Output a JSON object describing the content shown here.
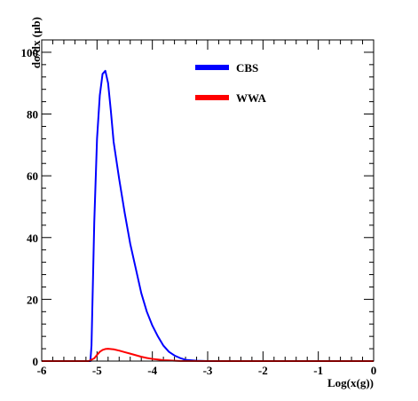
{
  "chart_data": {
    "type": "line",
    "title": "",
    "xlabel": "Log(x(g))",
    "ylabel": "dσ/dx (μb)",
    "xlim": [
      -6,
      0
    ],
    "ylim": [
      0,
      104
    ],
    "x_ticks": [
      -6,
      -5,
      -4,
      -3,
      -2,
      -1,
      0
    ],
    "x_tick_labels": [
      "-6",
      "-5",
      "-4",
      "-3",
      "-2",
      "-1",
      "0"
    ],
    "y_ticks": [
      0,
      20,
      40,
      60,
      80,
      100
    ],
    "y_tick_labels": [
      "0",
      "20",
      "40",
      "60",
      "80",
      "100"
    ],
    "grid": false,
    "legend_position": "top-center",
    "series": [
      {
        "name": "CBS",
        "color": "#0000ff",
        "x": [
          -6.0,
          -5.12,
          -5.1,
          -5.05,
          -5.0,
          -4.95,
          -4.9,
          -4.85,
          -4.8,
          -4.75,
          -4.7,
          -4.6,
          -4.5,
          -4.4,
          -4.3,
          -4.2,
          -4.1,
          -4.0,
          -3.9,
          -3.8,
          -3.7,
          -3.6,
          -3.5,
          -3.4,
          -3.2,
          -3.0,
          0.0
        ],
        "y": [
          0,
          0,
          5,
          45,
          72,
          86,
          93,
          94,
          90,
          81,
          71,
          59,
          48,
          38,
          30,
          22,
          16,
          11.5,
          8,
          5,
          3,
          1.8,
          1,
          0.4,
          0.1,
          0,
          0
        ]
      },
      {
        "name": "WWA",
        "color": "#ff0000",
        "x": [
          -6.0,
          -5.15,
          -5.05,
          -5.0,
          -4.95,
          -4.9,
          -4.85,
          -4.8,
          -4.7,
          -4.6,
          -4.5,
          -4.4,
          -4.3,
          -4.2,
          -4.1,
          -4.0,
          -3.9,
          -3.8,
          -3.7,
          -3.6,
          -3.5,
          0.0
        ],
        "y": [
          0,
          0,
          0.9,
          2.0,
          3.0,
          3.6,
          3.9,
          4.0,
          3.8,
          3.4,
          2.9,
          2.4,
          1.9,
          1.4,
          1.0,
          0.7,
          0.5,
          0.3,
          0.2,
          0.1,
          0.02,
          0
        ]
      }
    ]
  }
}
